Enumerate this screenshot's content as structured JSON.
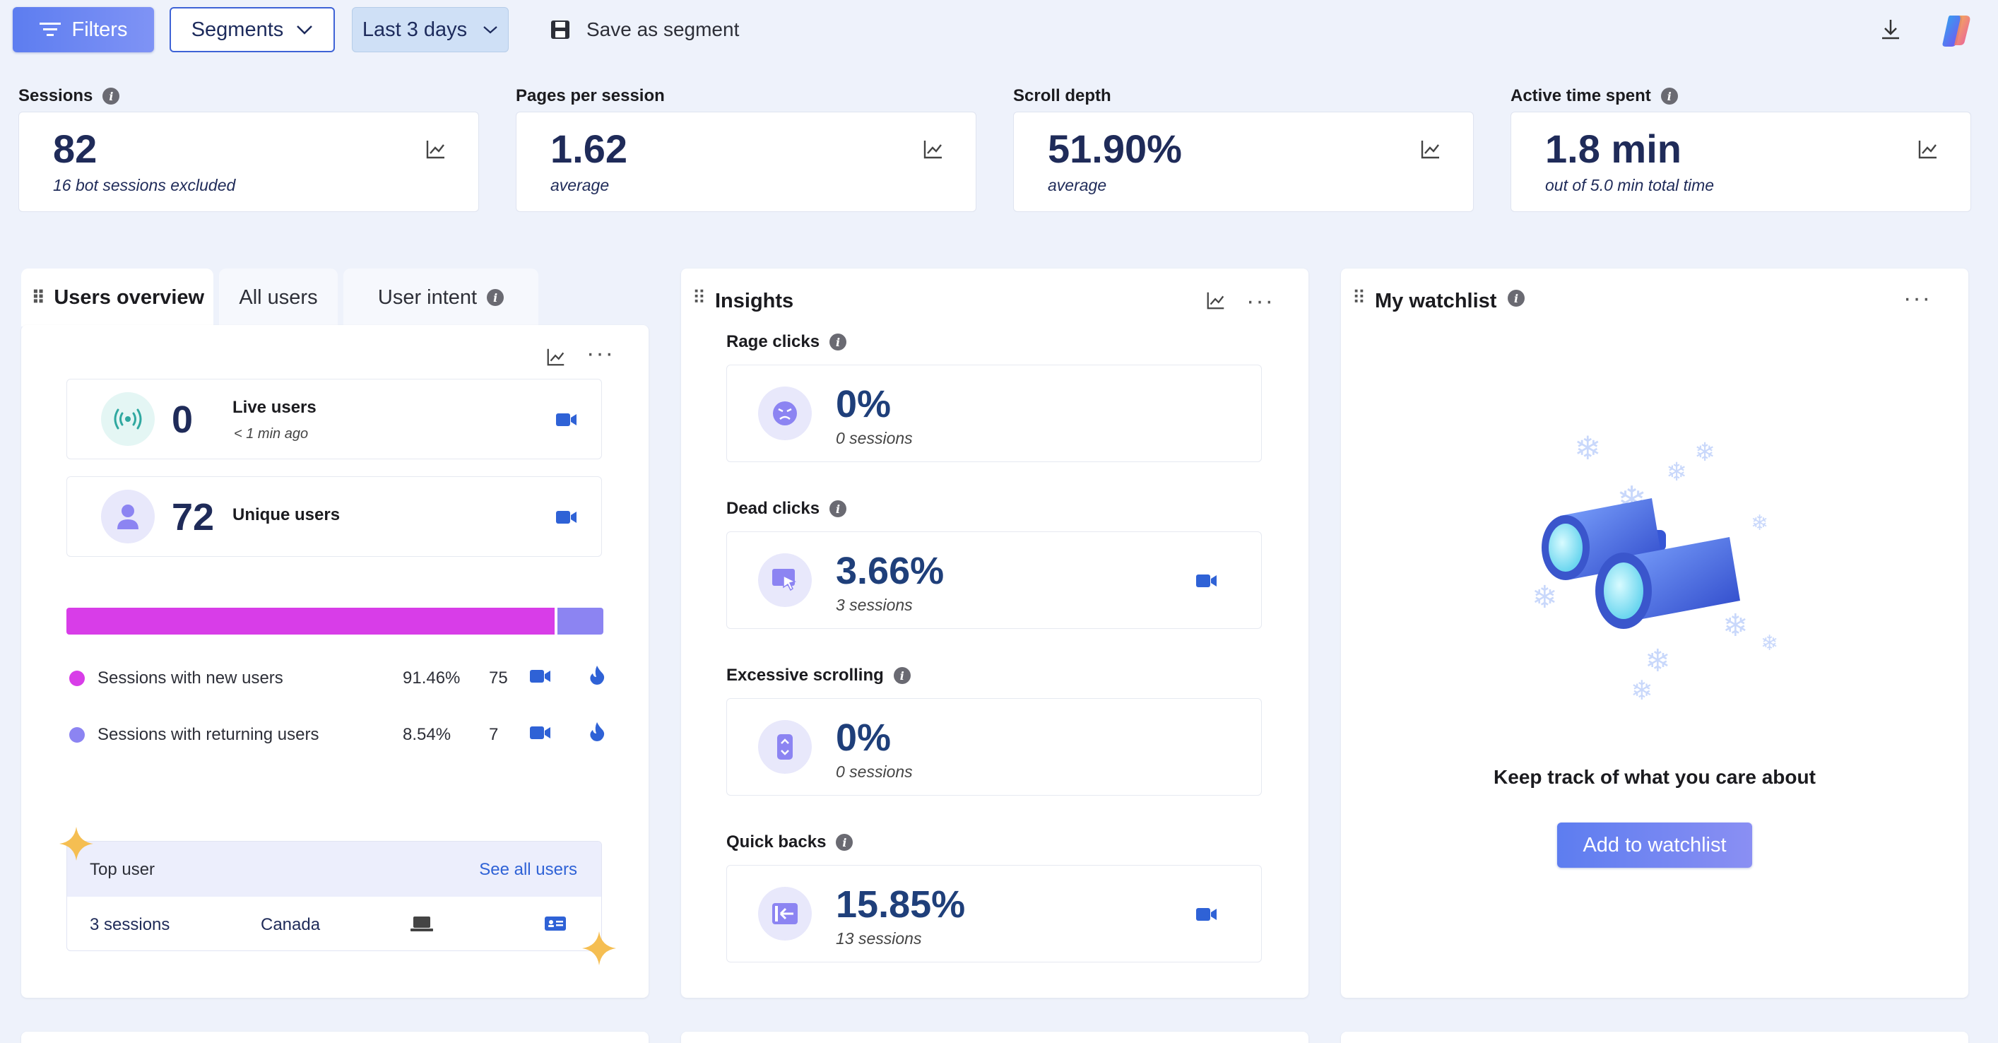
{
  "toolbar": {
    "filters_label": "Filters",
    "segments_label": "Segments",
    "date_range_label": "Last 3 days",
    "save_segment_label": "Save as segment"
  },
  "kpis": [
    {
      "label": "Sessions",
      "value": "82",
      "sub": "16 bot sessions excluded"
    },
    {
      "label": "Pages per session",
      "value": "1.62",
      "sub": "average"
    },
    {
      "label": "Scroll depth",
      "value": "51.90%",
      "sub": "average"
    },
    {
      "label": "Active time spent",
      "value": "1.8 min",
      "sub": "out of 5.0 min total time"
    }
  ],
  "users": {
    "tabs": [
      "Users overview",
      "All users",
      "User intent"
    ],
    "live": {
      "value": "0",
      "label": "Live users",
      "sub": "< 1 min ago"
    },
    "unique": {
      "value": "72",
      "label": "Unique users"
    },
    "split_bar": {
      "new_fraction": 0.9146,
      "new_color": "#d83de8",
      "returning_color": "#8c84f2"
    },
    "legend": [
      {
        "label": "Sessions with new users",
        "percent": "91.46%",
        "count": "75"
      },
      {
        "label": "Sessions with returning users",
        "percent": "8.54%",
        "count": "7"
      }
    ],
    "top_user": {
      "title": "Top user",
      "see_all": "See all users",
      "sessions": "3 sessions",
      "country": "Canada"
    }
  },
  "insights": {
    "title": "Insights",
    "items": [
      {
        "label": "Rage clicks",
        "value": "0%",
        "sub": "0 sessions"
      },
      {
        "label": "Dead clicks",
        "value": "3.66%",
        "sub": "3 sessions"
      },
      {
        "label": "Excessive scrolling",
        "value": "0%",
        "sub": "0 sessions"
      },
      {
        "label": "Quick backs",
        "value": "15.85%",
        "sub": "13 sessions"
      }
    ]
  },
  "watchlist": {
    "title": "My watchlist",
    "empty_text": "Keep track of what you care about",
    "add_button": "Add to watchlist"
  },
  "colors": {
    "accent": "#5d7df0",
    "navy": "#1f2b59",
    "video": "#2f62d6"
  }
}
